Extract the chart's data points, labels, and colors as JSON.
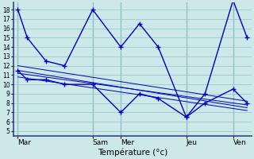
{
  "xlabel": "Température (°c)",
  "background_color": "#cce8e8",
  "grid_color": "#99cccc",
  "line_color": "#0000bb",
  "yticks": [
    5,
    6,
    7,
    8,
    9,
    10,
    11,
    12,
    13,
    14,
    15,
    16,
    17,
    18
  ],
  "ylim": [
    4.5,
    18.8
  ],
  "xlim": [
    0,
    25.5
  ],
  "day_labels": [
    "Mar",
    "Sam",
    "Mer",
    "Jeu",
    "Ven"
  ],
  "day_positions": [
    0.5,
    8.5,
    11.5,
    18.5,
    23.5
  ],
  "vline_positions": [
    0.5,
    8.5,
    11.5,
    18.5,
    23.5
  ],
  "line1": {
    "x": [
      0.5,
      1.5,
      3.5,
      5.5,
      8.5,
      11.5,
      13.5,
      15.5,
      18.5,
      20.5,
      23.5,
      25.0
    ],
    "y": [
      18,
      15,
      12.5,
      12,
      18,
      14,
      16.5,
      14,
      6.5,
      9,
      19,
      15
    ]
  },
  "line2": {
    "x": [
      0.5,
      1.5,
      3.5,
      5.5,
      8.5,
      11.5,
      13.5,
      15.5,
      18.5,
      20.5,
      23.5,
      25.0
    ],
    "y": [
      11.5,
      10.5,
      10.5,
      10,
      10,
      7,
      9,
      8.5,
      6.5,
      8,
      9.5,
      8
    ]
  },
  "straight_lines": [
    {
      "x": [
        0.5,
        25.0
      ],
      "y": [
        11.5,
        7.5
      ]
    },
    {
      "x": [
        0.5,
        25.0
      ],
      "y": [
        12.0,
        8.2
      ]
    },
    {
      "x": [
        0.5,
        25.0
      ],
      "y": [
        11.2,
        7.8
      ]
    },
    {
      "x": [
        0.5,
        25.0
      ],
      "y": [
        10.8,
        7.2
      ]
    }
  ]
}
